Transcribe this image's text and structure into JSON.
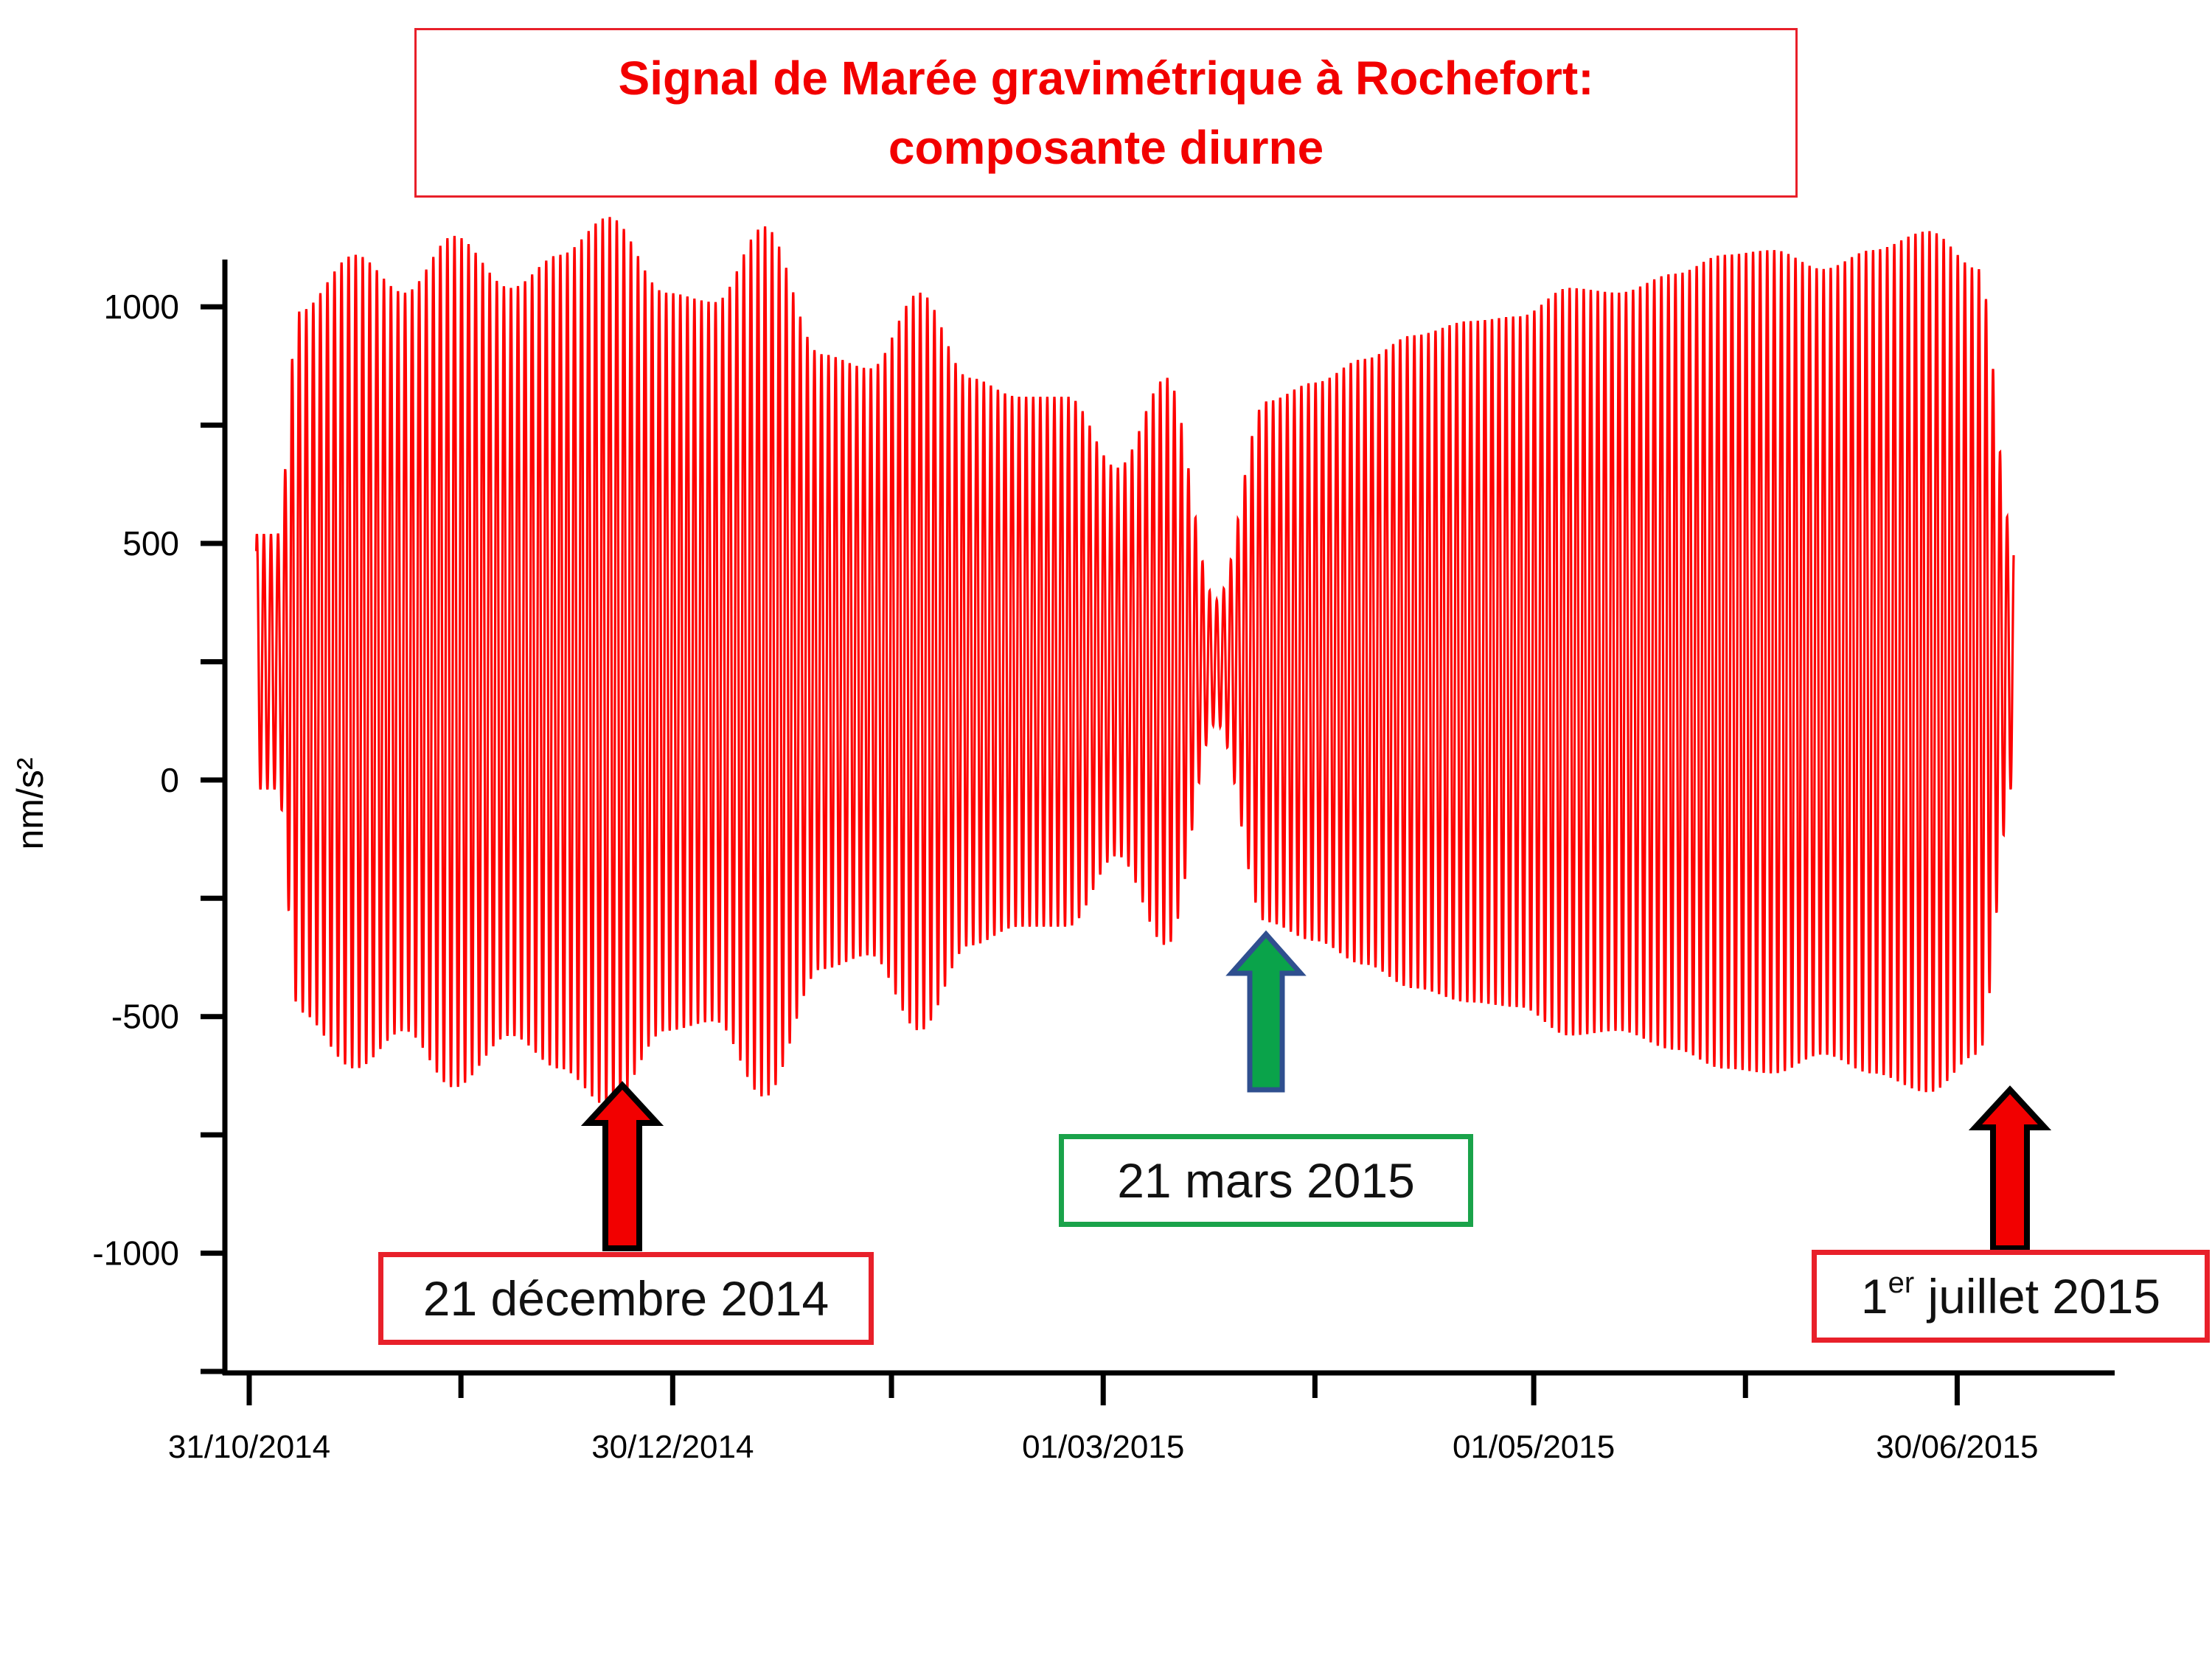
{
  "title": {
    "line1": "Signal de Marée gravimétrique à Rochefort:",
    "line2": "composante diurne",
    "color": "#f20000"
  },
  "annotations": {
    "winter": {
      "text": "21 décembre 2014",
      "date": "2014-12-21",
      "arrow_color": "#f20000"
    },
    "spring": {
      "text": "21 mars 2015",
      "date": "2015-03-21",
      "arrow_color": "#0aa34a"
    },
    "summer": {
      "sup": "er",
      "pre": "1",
      "text": " juillet  2015",
      "date": "2015-07-01",
      "arrow_color": "#f20000"
    }
  },
  "chart_data": {
    "type": "line",
    "title": "",
    "xlabel": "",
    "ylabel": "nm/s²",
    "x_axis_type": "date",
    "xlim": [
      "2014-10-31",
      "2015-07-22"
    ],
    "ylim": [
      -1250,
      1100
    ],
    "x_ticks": [
      {
        "date": "2014-10-31",
        "label": "31/10/2014"
      },
      {
        "date": "2014-12-30",
        "label": "30/12/2014"
      },
      {
        "date": "2015-03-01",
        "label": "01/03/2015"
      },
      {
        "date": "2015-05-01",
        "label": "01/05/2015"
      },
      {
        "date": "2015-06-30",
        "label": "30/06/2015"
      }
    ],
    "x_minor_tick_dates": [
      "2014-11-30",
      "2015-01-30",
      "2015-03-31",
      "2015-05-31"
    ],
    "y_ticks": [
      1000,
      500,
      0,
      -500,
      -1000
    ],
    "y_minor_ticks": [
      750,
      250,
      -250,
      -750,
      -1250
    ],
    "grid": false,
    "legend": "none",
    "series": [
      {
        "color": "#ff0000",
        "x_start": "2014-11-01",
        "x_end": "2015-07-08",
        "period_hours": 24,
        "mean": 250,
        "envelope_peaks": [
          {
            "date": "2014-11-04",
            "amplitude": 270
          },
          {
            "date": "2014-11-07",
            "amplitude": 740
          },
          {
            "date": "2014-11-15",
            "amplitude": 860
          },
          {
            "date": "2014-11-22",
            "amplitude": 780
          },
          {
            "date": "2014-11-29",
            "amplitude": 900
          },
          {
            "date": "2014-12-07",
            "amplitude": 790
          },
          {
            "date": "2014-12-14",
            "amplitude": 860
          },
          {
            "date": "2014-12-21",
            "amplitude": 940
          },
          {
            "date": "2014-12-29",
            "amplitude": 780
          },
          {
            "date": "2015-01-05",
            "amplitude": 760
          },
          {
            "date": "2015-01-12",
            "amplitude": 920
          },
          {
            "date": "2015-01-20",
            "amplitude": 650
          },
          {
            "date": "2015-01-27",
            "amplitude": 620
          },
          {
            "date": "2015-02-03",
            "amplitude": 780
          },
          {
            "date": "2015-02-10",
            "amplitude": 600
          },
          {
            "date": "2015-02-17",
            "amplitude": 560
          },
          {
            "date": "2015-02-24",
            "amplitude": 560
          },
          {
            "date": "2015-03-03",
            "amplitude": 410
          },
          {
            "date": "2015-03-10",
            "amplitude": 600
          },
          {
            "date": "2015-03-17",
            "amplitude": 130
          },
          {
            "date": "2015-03-24",
            "amplitude": 550
          },
          {
            "date": "2015-03-31",
            "amplitude": 590
          },
          {
            "date": "2015-04-07",
            "amplitude": 640
          },
          {
            "date": "2015-04-14",
            "amplitude": 690
          },
          {
            "date": "2015-04-22",
            "amplitude": 720
          },
          {
            "date": "2015-04-29",
            "amplitude": 730
          },
          {
            "date": "2015-05-06",
            "amplitude": 790
          },
          {
            "date": "2015-05-13",
            "amplitude": 780
          },
          {
            "date": "2015-05-21",
            "amplitude": 820
          },
          {
            "date": "2015-05-28",
            "amplitude": 860
          },
          {
            "date": "2015-06-04",
            "amplitude": 870
          },
          {
            "date": "2015-06-11",
            "amplitude": 830
          },
          {
            "date": "2015-06-18",
            "amplitude": 870
          },
          {
            "date": "2015-06-26",
            "amplitude": 910
          },
          {
            "date": "2015-07-03",
            "amplitude": 830
          },
          {
            "date": "2015-07-08",
            "amplitude": 260
          }
        ]
      }
    ]
  }
}
